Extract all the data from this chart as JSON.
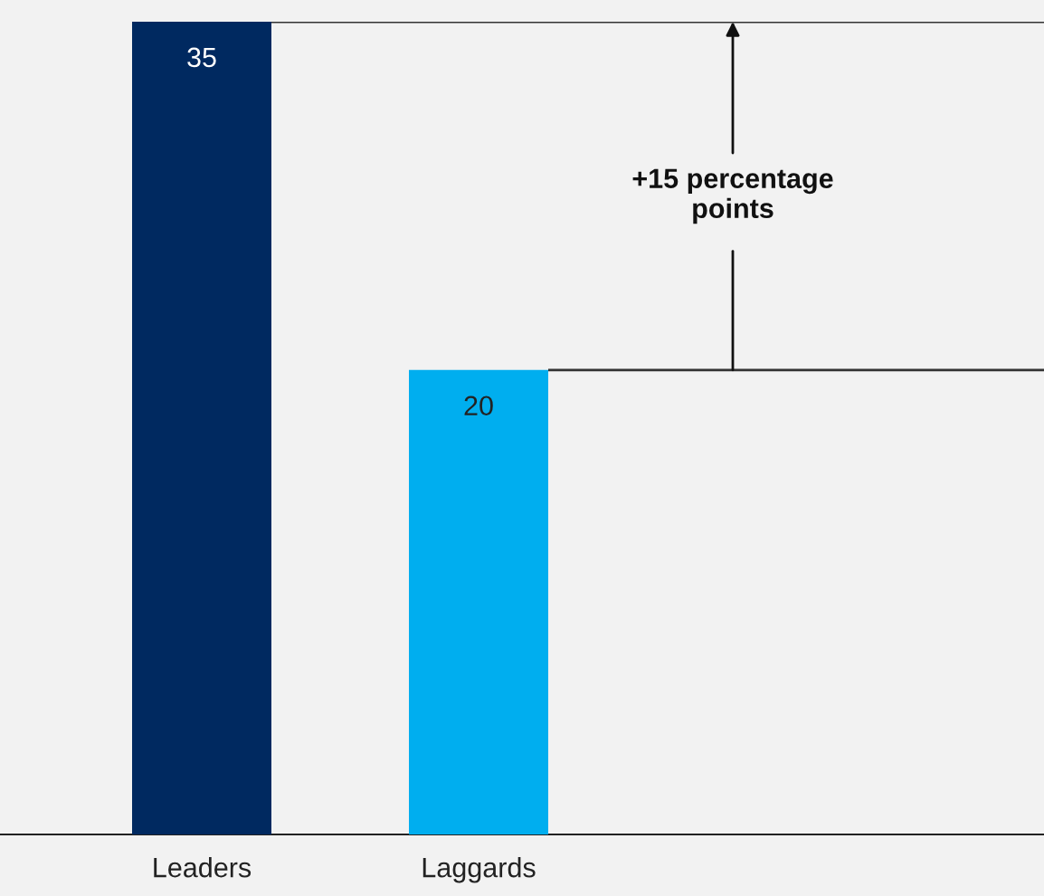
{
  "chart_data": {
    "type": "bar",
    "categories": [
      "Leaders",
      "Laggards"
    ],
    "values": [
      35,
      20
    ],
    "colors": [
      "#002960",
      "#00aeef"
    ],
    "data_labels": true,
    "ref_lines": [
      {
        "axis": "y",
        "value": 35,
        "color": "#333333"
      },
      {
        "axis": "y",
        "value": 20,
        "color": "#333333"
      }
    ],
    "annotations": [
      "+15 percentage points"
    ]
  }
}
